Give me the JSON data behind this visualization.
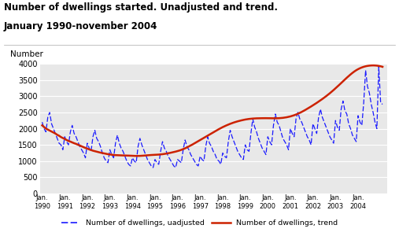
{
  "title_line1": "Number of dwellings started. Unadjusted and trend.",
  "title_line2": "January 1990-november 2004",
  "ylabel": "Number",
  "ylim": [
    0,
    4000
  ],
  "yticks": [
    0,
    500,
    1000,
    1500,
    2000,
    2500,
    3000,
    3500,
    4000
  ],
  "background_color": "#ffffff",
  "plot_bg_color": "#e8e8e8",
  "unadj_color": "#1a1aff",
  "trend_color": "#cc2200",
  "legend_unadj": "Number of dwellings, uadjusted",
  "legend_trend": "Number of dwellings, trend",
  "unadjusted": [
    2200,
    2000,
    1900,
    2350,
    2500,
    2150,
    2000,
    1850,
    1700,
    1550,
    1500,
    1350,
    1750,
    1600,
    1500,
    1900,
    2100,
    1850,
    1750,
    1600,
    1450,
    1350,
    1250,
    1100,
    1550,
    1400,
    1300,
    1750,
    1950,
    1700,
    1600,
    1450,
    1250,
    1100,
    1000,
    950,
    1350,
    1200,
    1100,
    1550,
    1800,
    1550,
    1400,
    1300,
    1150,
    1000,
    900,
    850,
    1100,
    1000,
    950,
    1450,
    1700,
    1500,
    1350,
    1200,
    1050,
    950,
    850,
    800,
    1050,
    950,
    900,
    1300,
    1600,
    1400,
    1300,
    1150,
    1050,
    950,
    850,
    800,
    1050,
    1000,
    950,
    1350,
    1650,
    1450,
    1350,
    1200,
    1100,
    1000,
    900,
    850,
    1150,
    1050,
    1000,
    1450,
    1750,
    1550,
    1450,
    1300,
    1200,
    1050,
    1000,
    900,
    1250,
    1150,
    1100,
    1600,
    1950,
    1750,
    1600,
    1450,
    1300,
    1200,
    1100,
    1050,
    1500,
    1350,
    1300,
    1850,
    2300,
    2050,
    1900,
    1700,
    1550,
    1400,
    1300,
    1200,
    1750,
    1600,
    1500,
    2100,
    2450,
    2200,
    2100,
    1900,
    1700,
    1600,
    1500,
    1350,
    2000,
    1850,
    1750,
    2300,
    2500,
    2300,
    2200,
    2050,
    1900,
    1750,
    1650,
    1500,
    2150,
    2000,
    1850,
    2350,
    2600,
    2350,
    2200,
    2050,
    1900,
    1750,
    1650,
    1550,
    2250,
    2050,
    1950,
    2600,
    2850,
    2550,
    2450,
    2150,
    2000,
    1800,
    1700,
    1600,
    2400,
    2200,
    2100,
    2800,
    3800,
    3300,
    3100,
    2750,
    2500,
    2200,
    2000,
    3900,
    2800,
    2750
  ],
  "trend": [
    2100,
    2050,
    2000,
    1970,
    1940,
    1910,
    1880,
    1850,
    1810,
    1780,
    1740,
    1710,
    1680,
    1650,
    1620,
    1600,
    1575,
    1550,
    1530,
    1505,
    1480,
    1455,
    1430,
    1405,
    1385,
    1360,
    1340,
    1320,
    1305,
    1290,
    1275,
    1260,
    1248,
    1235,
    1223,
    1212,
    1203,
    1195,
    1188,
    1183,
    1180,
    1177,
    1175,
    1173,
    1172,
    1170,
    1168,
    1165,
    1162,
    1160,
    1158,
    1158,
    1160,
    1163,
    1168,
    1173,
    1178,
    1183,
    1187,
    1190,
    1193,
    1196,
    1200,
    1205,
    1212,
    1220,
    1230,
    1240,
    1252,
    1265,
    1278,
    1292,
    1308,
    1325,
    1345,
    1368,
    1393,
    1420,
    1450,
    1480,
    1513,
    1546,
    1580,
    1614,
    1648,
    1682,
    1716,
    1750,
    1784,
    1818,
    1852,
    1886,
    1920,
    1953,
    1985,
    2016,
    2046,
    2074,
    2100,
    2125,
    2148,
    2170,
    2190,
    2208,
    2225,
    2241,
    2255,
    2268,
    2280,
    2290,
    2298,
    2305,
    2310,
    2314,
    2317,
    2319,
    2320,
    2321,
    2322,
    2322,
    2321,
    2320,
    2319,
    2318,
    2318,
    2319,
    2322,
    2326,
    2332,
    2340,
    2350,
    2362,
    2376,
    2393,
    2412,
    2434,
    2458,
    2485,
    2514,
    2545,
    2578,
    2612,
    2647,
    2682,
    2718,
    2755,
    2793,
    2832,
    2872,
    2913,
    2955,
    2999,
    3044,
    3091,
    3140,
    3190,
    3242,
    3295,
    3349,
    3404,
    3459,
    3514,
    3568,
    3620,
    3670,
    3717,
    3760,
    3799,
    3832,
    3861,
    3885,
    3905,
    3921,
    3933,
    3941,
    3946,
    3948,
    3946,
    3941,
    3932,
    3920,
    3905
  ]
}
